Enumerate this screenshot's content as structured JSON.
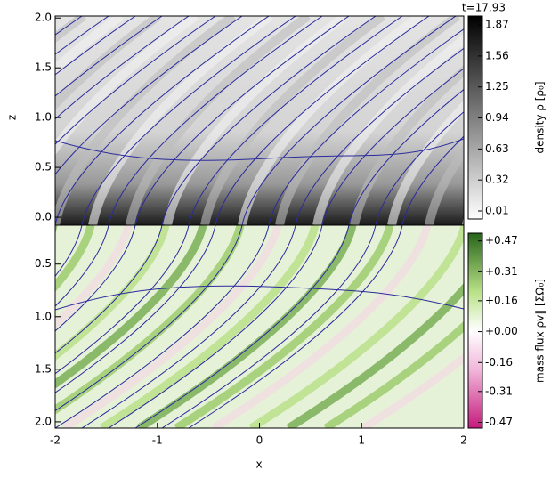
{
  "chart_data": [
    {
      "type": "heatmap",
      "annotation": "t=17.93",
      "ylabel": "z",
      "ylim": [
        -0.08,
        2.02
      ],
      "yticks": [
        {
          "value": 0,
          "label": "0.0"
        },
        0.5,
        {
          "value": 1,
          "label": "1.0"
        },
        1.5,
        {
          "value": 2,
          "label": "2.0"
        }
      ],
      "colorbar": {
        "label": "density ρ [ρ₀]",
        "lim": [
          -0.07,
          1.96
        ],
        "ticks": [
          0.01,
          0.32,
          0.63,
          0.94,
          1.25,
          1.56,
          1.87
        ]
      }
    },
    {
      "type": "heatmap",
      "xlabel": "x",
      "xlim": [
        -2,
        2
      ],
      "xticks": [
        -2,
        -1,
        0,
        1,
        2
      ],
      "ylim": [
        0.13,
        2.06
      ],
      "yticks": [
        0.5,
        {
          "value": 1,
          "label": "1.0"
        },
        1.5,
        {
          "value": 2,
          "label": "2.0"
        }
      ],
      "colorbar": {
        "label": "mass flux ρv∥ [ΣΩ₀]",
        "lim": [
          -0.5,
          0.51
        ],
        "ticks": [
          {
            "value": -0.47,
            "label": "-0.47"
          },
          {
            "value": -0.31,
            "label": "-0.31"
          },
          {
            "value": -0.16,
            "label": "-0.16"
          },
          {
            "value": 0,
            "label": "+0.00"
          },
          {
            "value": 0.16,
            "label": "+0.16"
          },
          {
            "value": 0.31,
            "label": "+0.31"
          },
          {
            "value": 0.47,
            "label": "+0.47"
          }
        ]
      }
    }
  ]
}
